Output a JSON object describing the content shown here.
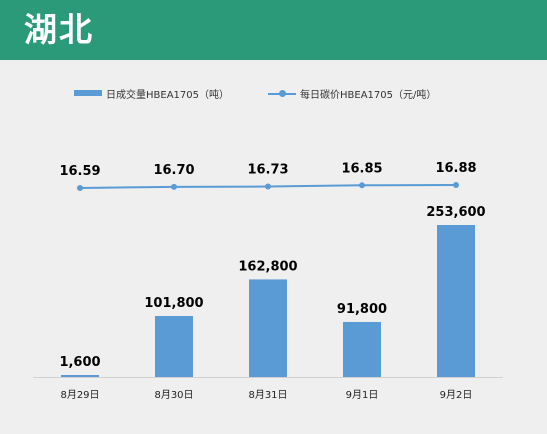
{
  "header": {
    "title": "湖北"
  },
  "colors": {
    "header_bg": "#2b9a78",
    "series": "#5b9bd5",
    "background": "#efefef"
  },
  "chart_data": {
    "type": "bar",
    "title": "",
    "xlabel": "",
    "ylabel": "",
    "categories": [
      "8月29日",
      "8月30日",
      "8月31日",
      "9月1日",
      "9月2日"
    ],
    "legend_position": "top",
    "grid": false,
    "series": [
      {
        "name": "日成交量HBEA1705（吨）",
        "type": "bar",
        "values": [
          1600,
          101800,
          162800,
          91800,
          253600
        ],
        "value_labels": [
          "1,600",
          "101,800",
          "162,800",
          "91,800",
          "253,600"
        ]
      },
      {
        "name": "每日碳价HBEA1705（元/吨）",
        "type": "line",
        "values": [
          16.59,
          16.7,
          16.73,
          16.85,
          16.88
        ],
        "value_labels": [
          "16.59",
          "16.70",
          "16.73",
          "16.85",
          "16.88"
        ]
      }
    ]
  }
}
